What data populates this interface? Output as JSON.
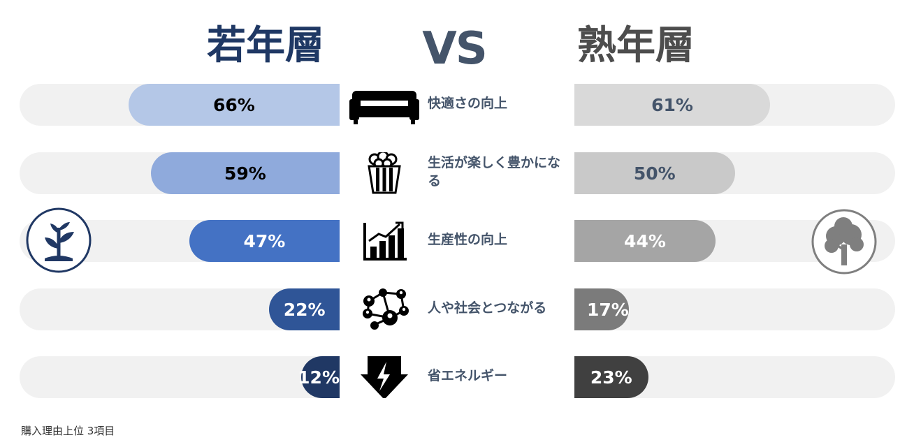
{
  "title_left": "若年層",
  "title_vs": "VS",
  "title_right": "熟年層",
  "footnote": "購入理由上位 3項目",
  "icons": {
    "left_group": "sprout-icon",
    "right_group": "tree-icon",
    "rows": [
      "sofa-icon",
      "popcorn-icon",
      "bar-chart-growth-icon",
      "network-people-icon",
      "lightning-icon"
    ]
  },
  "colors": {
    "left_bars": [
      "#b4c7e7",
      "#8faadc",
      "#4472c4",
      "#2f5597",
      "#203864"
    ],
    "right_bars": [
      "#d9d9d9",
      "#c9c9c9",
      "#a5a5a5",
      "#7b7b7b",
      "#404040"
    ],
    "track": "#f1f1f1"
  },
  "chart_data": {
    "type": "bar",
    "categories": [
      "快適さの向上",
      "生活が楽しく豊かになる",
      "生産性の向上",
      "人や社会とつながる",
      "省エネルギー"
    ],
    "series": [
      {
        "name": "若年層",
        "values": [
          66,
          59,
          47,
          22,
          12
        ]
      },
      {
        "name": "熟年層",
        "values": [
          61,
          50,
          44,
          17,
          23
        ]
      }
    ],
    "unit": "%",
    "labels_left": [
      "66%",
      "59%",
      "47%",
      "22%",
      "12%"
    ],
    "labels_right": [
      "61%",
      "50%",
      "44%",
      "17%",
      "23%"
    ],
    "ylim": [
      0,
      100
    ]
  }
}
